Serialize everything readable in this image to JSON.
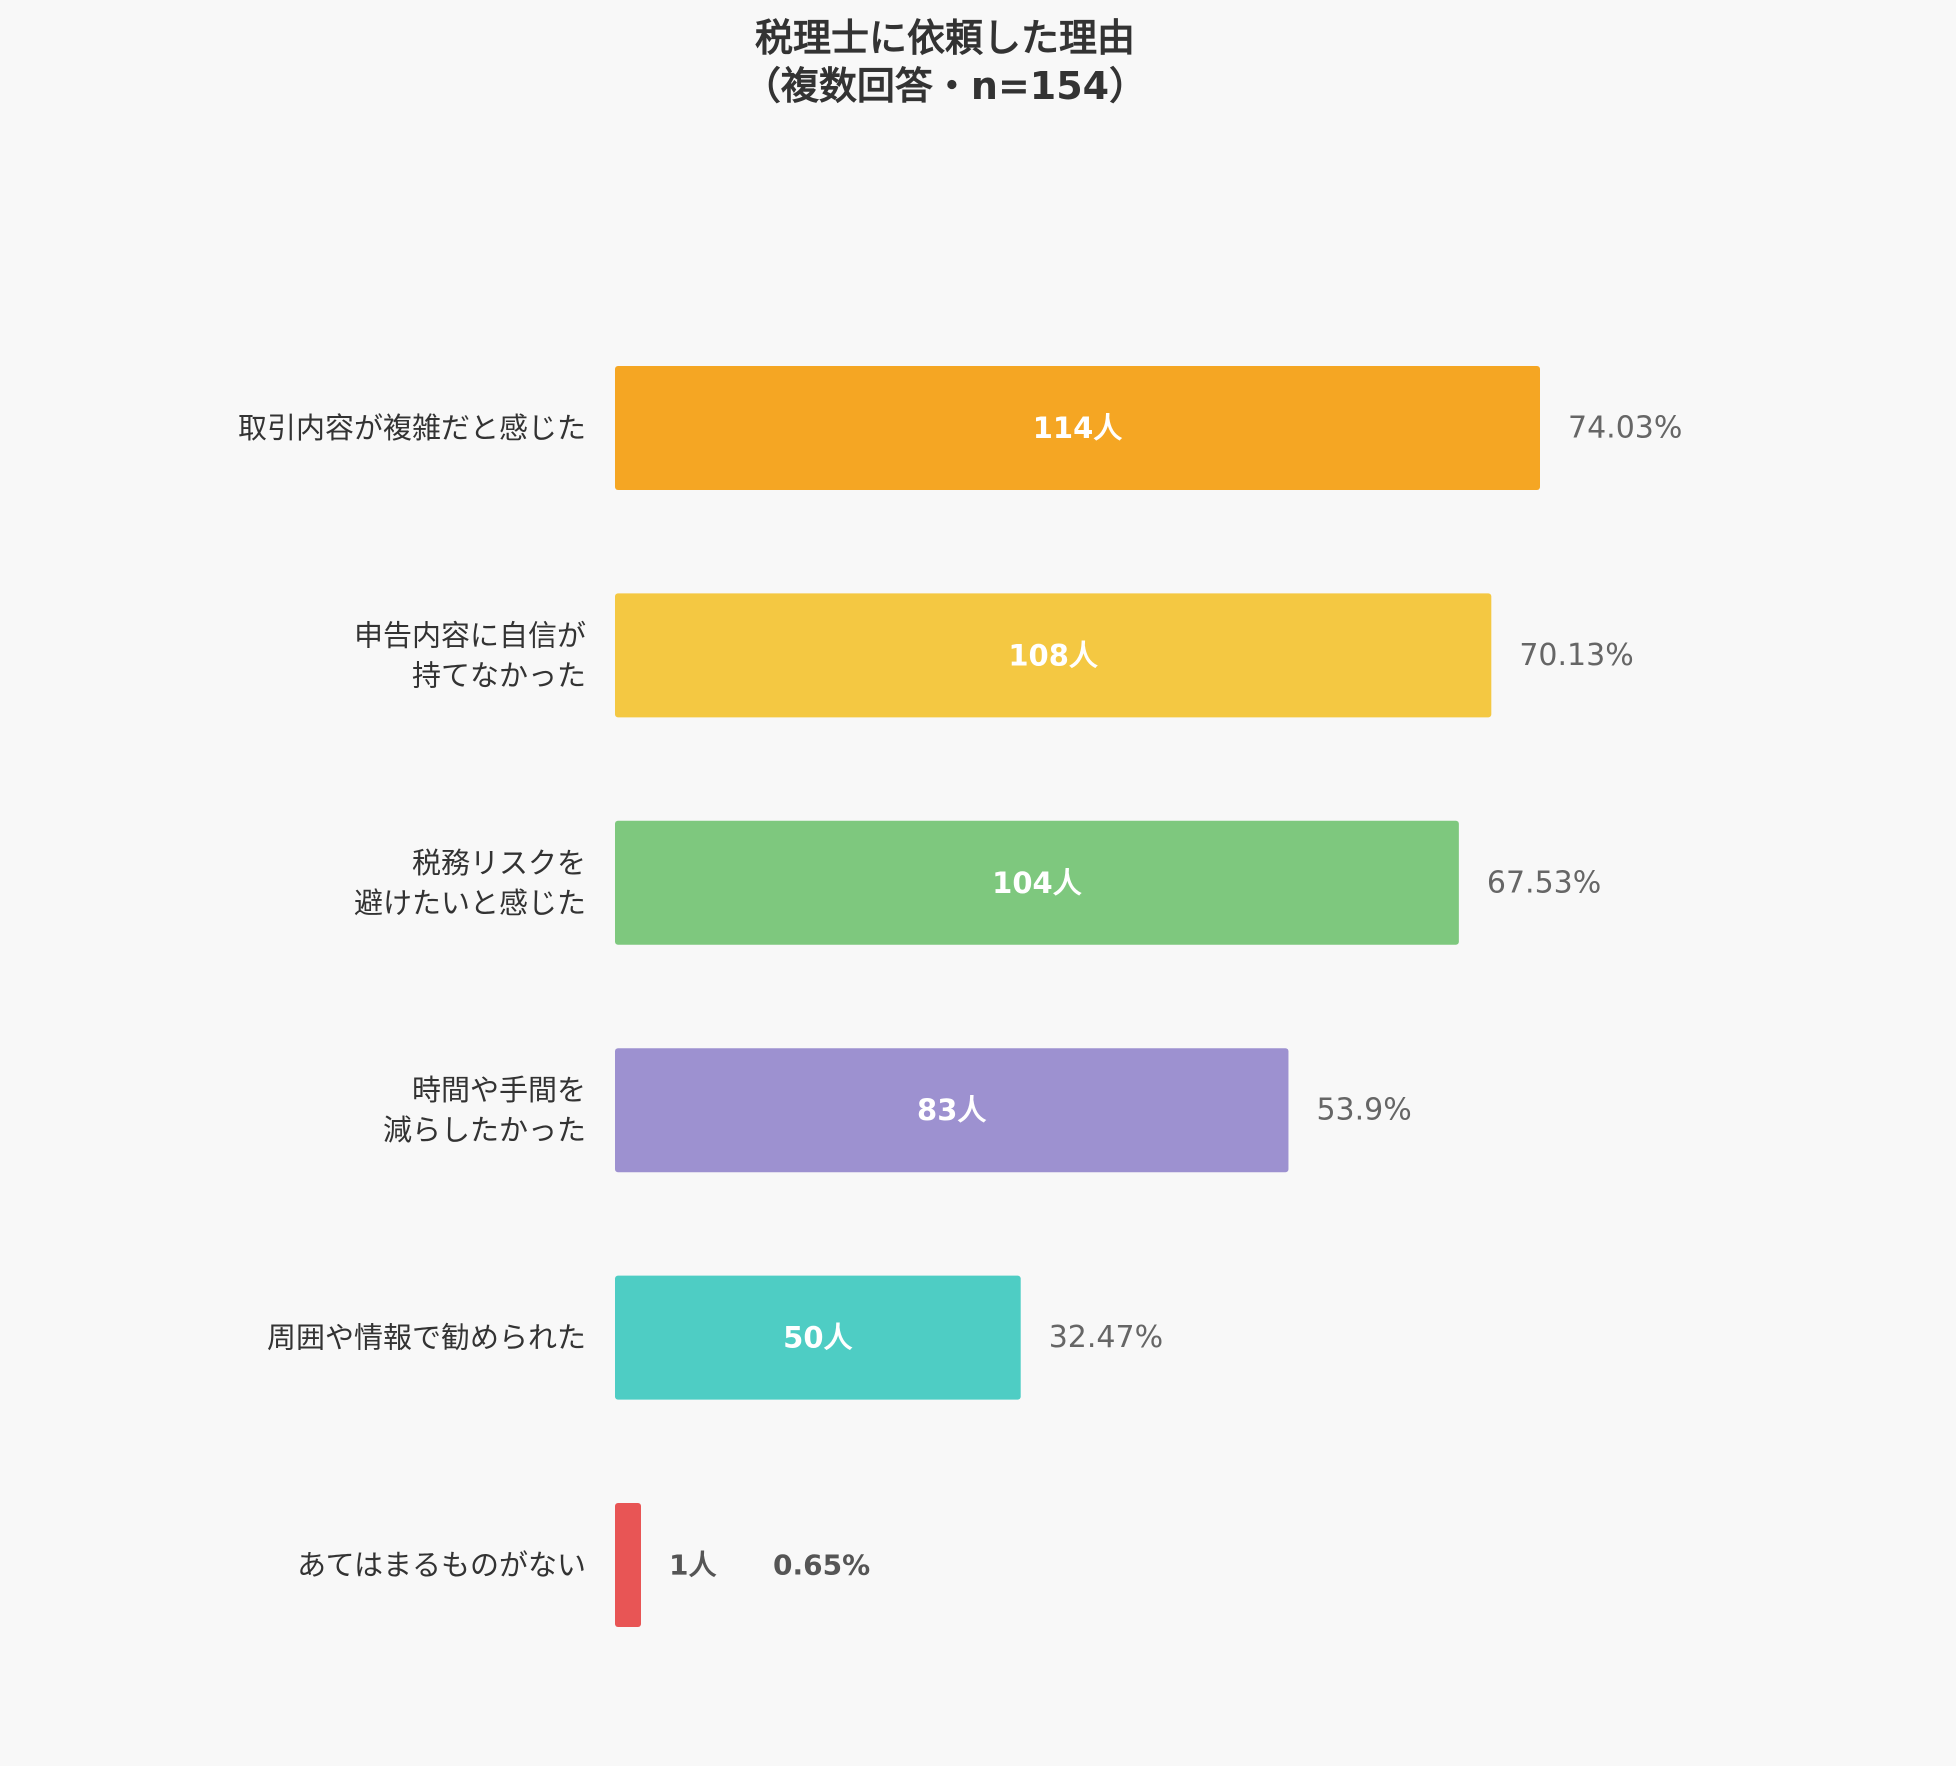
{
  "chart_data": {
    "type": "bar",
    "orientation": "horizontal",
    "title_lines": [
      "税理士に依頼した理由",
      "（複数回答・n=154）"
    ],
    "count_unit": "人",
    "categories": [
      [
        "取引内容が複雑だと感じた"
      ],
      [
        "申告内容に自信が",
        "持てなかった"
      ],
      [
        "税務リスクを",
        "避けたいと感じた"
      ],
      [
        "時間や手間を",
        "減らしたかった"
      ],
      [
        "周囲や情報で勧められた"
      ],
      [
        "あてはまるものがない"
      ]
    ],
    "values": [
      114,
      108,
      104,
      83,
      50,
      1
    ],
    "percent_labels": [
      "74.03%",
      "70.13%",
      "67.53%",
      "53.9%",
      "32.47%",
      "0.65%"
    ],
    "colors": [
      "#F5A623",
      "#F4C842",
      "#7EC87E",
      "#9D91D0",
      "#4ECDC4",
      "#E85555"
    ],
    "xlim": [
      0,
      114
    ],
    "grid": false,
    "legend": "none"
  }
}
